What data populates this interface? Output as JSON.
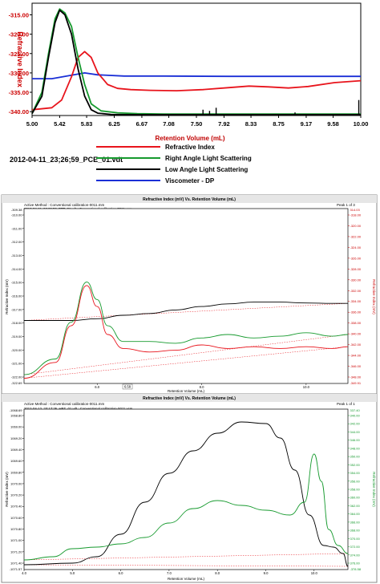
{
  "chart_data": [
    {
      "type": "line",
      "xlabel": "Retention Volume (mL)",
      "ylabel": "Refractive Index",
      "x_ticks": [
        "5.00",
        "5.42",
        "5.83",
        "6.25",
        "6.67",
        "7.08",
        "7.50",
        "7.92",
        "8.33",
        "8.75",
        "9.17",
        "9.58",
        "10.00"
      ],
      "y_ticks": [
        "-315.00",
        "-320.00",
        "-325.00",
        "-330.00",
        "-335.00",
        "-340.00"
      ],
      "xlim": [
        5.0,
        10.0
      ],
      "ylim": [
        -341,
        -312
      ],
      "sample_label": "2012-04-11_23;26;59_PCE_01.vdt",
      "legend": [
        {
          "name": "Refractive Index",
          "color": "#e8141c"
        },
        {
          "name": "Right Angle Light Scattering",
          "color": "#169a2e"
        },
        {
          "name": "Low Angle Light Scattering",
          "color": "#000000"
        },
        {
          "name": "Viscometer - DP",
          "color": "#1a2fd6"
        }
      ],
      "series": [
        {
          "name": "Refractive Index",
          "color": "#e8141c",
          "x": [
            5.0,
            5.3,
            5.45,
            5.6,
            5.7,
            5.8,
            5.9,
            6.0,
            6.15,
            6.3,
            6.5,
            6.8,
            7.2,
            7.6,
            8.0,
            8.3,
            8.6,
            8.9,
            9.2,
            9.6,
            10.0
          ],
          "y": [
            -339.5,
            -339,
            -337,
            -331,
            -326,
            -324.5,
            -326,
            -330,
            -333,
            -334,
            -334.3,
            -334.5,
            -334.6,
            -334.3,
            -333.8,
            -333.4,
            -333.6,
            -333.9,
            -333.5,
            -332.5,
            -332
          ]
        },
        {
          "name": "Right Angle Light Scattering",
          "color": "#169a2e",
          "x": [
            5.0,
            5.15,
            5.25,
            5.35,
            5.42,
            5.5,
            5.6,
            5.7,
            5.8,
            5.9,
            6.05,
            6.3,
            6.6,
            7.0,
            8.0,
            10.0
          ],
          "y": [
            -340.5,
            -335,
            -325,
            -316,
            -313.5,
            -314.5,
            -318,
            -326,
            -333,
            -338,
            -339.8,
            -340.3,
            -340.5,
            -340.6,
            -340.6,
            -340.6
          ]
        },
        {
          "name": "Low Angle Light Scattering",
          "color": "#000000",
          "x": [
            5.0,
            5.15,
            5.25,
            5.35,
            5.42,
            5.5,
            5.6,
            5.7,
            5.8,
            5.9,
            6.0,
            6.2,
            6.6,
            7.0,
            8.0,
            10.0
          ],
          "y": [
            -340.5,
            -336,
            -326,
            -317,
            -313.8,
            -315,
            -320,
            -329,
            -336,
            -339.5,
            -340.4,
            -340.7,
            -340.8,
            -340.8,
            -340.8,
            -340.8
          ]
        },
        {
          "name": "Viscometer - DP",
          "color": "#1a2fd6",
          "x": [
            5.0,
            5.3,
            5.6,
            5.8,
            6.0,
            6.4,
            7.0,
            8.0,
            9.0,
            10.0
          ],
          "y": [
            -331.5,
            -331.5,
            -330.6,
            -330,
            -330.5,
            -330.8,
            -330.8,
            -330.9,
            -330.9,
            -330.9
          ]
        }
      ]
    },
    {
      "type": "line",
      "title": "Refractive Index (mV) Vs. Retention Volume (mL)",
      "active_method": "Active Method : Conventional calibration-0011.mm",
      "page": "Peak 1 of 3",
      "files": [
        {
          "text": "2012-04-11_22;26;52_PTF_01.vdt : Conventional calibration-0011.vcm",
          "color": "#000000"
        },
        {
          "text": "2012-04-11_21;24;43_DPE_01.vdt : Conventional calibration-0011.vcm",
          "color": "#169a2e"
        },
        {
          "text": "2012-04-11_23;26;59_PCE_01.vdt : Conventional calibration-0011.vcm",
          "color": "#e8141c"
        }
      ],
      "xlabel": "Retention Volume (mL)",
      "ylabel_left": "Refractive Index (mV)",
      "ylabel_right": "Refractive Index (mV)",
      "xlim": [
        4.6,
        10.8
      ],
      "x_ticks": [
        "6.0",
        "8.0",
        "10.0"
      ],
      "x_marker": "6.58",
      "y_top_left": "-309.38",
      "y_bottom_left": "-322.69",
      "y_ticks_left": [
        "-310.00",
        "-311.00",
        "-312.00",
        "-313.00",
        "-314.00",
        "-315.00",
        "-316.00",
        "-317.00",
        "-318.00",
        "-319.00",
        "-320.00",
        "-321.00",
        "-322.00"
      ],
      "y_ticks_right": [
        "-318.00",
        "-320.00",
        "-322.00",
        "-324.00",
        "-326.00",
        "-328.00",
        "-330.00",
        "-332.00",
        "-334.00",
        "-336.00",
        "-338.00",
        "-340.00",
        "-342.00",
        "-344.00",
        "-346.00",
        "-348.00"
      ],
      "y_top_right": "314.03",
      "y_bottom_right": "-349.91",
      "series": [
        {
          "name": "PTF",
          "color": "#000000",
          "x": [
            4.6,
            5.5,
            6.0,
            6.5,
            7.0,
            7.5,
            8.0,
            8.5,
            9.0,
            9.5,
            10.0,
            10.5,
            10.8
          ],
          "y": [
            0.36,
            0.36,
            0.37,
            0.39,
            0.4,
            0.42,
            0.44,
            0.455,
            0.465,
            0.465,
            0.46,
            0.458,
            0.458
          ]
        },
        {
          "name": "DPE",
          "color": "#169a2e",
          "x": [
            4.6,
            5.2,
            5.5,
            5.8,
            6.0,
            6.2,
            6.5,
            7.0,
            7.5,
            8.0,
            8.5,
            9.0,
            9.5,
            10.0,
            10.5,
            10.8
          ],
          "y": [
            0.05,
            0.14,
            0.35,
            0.58,
            0.48,
            0.33,
            0.24,
            0.24,
            0.23,
            0.26,
            0.28,
            0.26,
            0.27,
            0.29,
            0.27,
            0.28
          ]
        },
        {
          "name": "PCE",
          "color": "#e8141c",
          "x": [
            4.6,
            5.2,
            5.5,
            5.8,
            6.0,
            6.2,
            6.5,
            7.0,
            7.5,
            8.0,
            8.5,
            9.0,
            9.5,
            10.0,
            10.5,
            10.8
          ],
          "y": [
            0.03,
            0.12,
            0.33,
            0.56,
            0.44,
            0.28,
            0.2,
            0.18,
            0.19,
            0.22,
            0.2,
            0.21,
            0.2,
            0.21,
            0.2,
            0.21
          ]
        }
      ]
    },
    {
      "type": "line",
      "title": "Refractive Index (mV) Vs. Retention Volume (mL)",
      "active_method": "Active Method : Conventional calibration-0011.mm",
      "page": "Peak 1 of 1",
      "files": [
        {
          "text": "2012-04-12_23;17;25_HEF_01.vdt : Conventional calibration-0011.vcm",
          "color": "#000000"
        },
        {
          "text": "2012-04-12_23;28;20_HCF_01.vdt : Conventional calibration-0011.vcm",
          "color": "#169a2e"
        }
      ],
      "xlabel": "Retention Volume (mL)",
      "ylabel_left": "Refractive Index (mV)",
      "ylabel_right": "Refractive Index (mV)",
      "xlim": [
        4.0,
        10.7
      ],
      "x_ticks": [
        "4.0",
        "5.0",
        "6.0",
        "7.0",
        "8.0",
        "9.0",
        "10.0"
      ],
      "y_top_left": "-1068.69",
      "y_bottom_left": "-1071.57",
      "y_ticks_left": [
        "1068.80",
        "1069.00",
        "1069.20",
        "1069.40",
        "1069.60",
        "1069.80",
        "1070.00",
        "1070.20",
        "1070.40",
        "1070.60",
        "1070.80",
        "1071.00",
        "1071.20",
        "1071.40"
      ],
      "y_top_right": "337.40",
      "y_bottom_right": "-378.58",
      "y_ticks_right": [
        "340.00",
        "342.00",
        "344.00",
        "346.00",
        "348.00",
        "350.00",
        "352.00",
        "354.00",
        "356.00",
        "358.00",
        "360.00",
        "362.00",
        "364.00",
        "366.00",
        "368.00",
        "370.00",
        "372.00",
        "374.00",
        "376.00"
      ],
      "series": [
        {
          "name": "HEF",
          "color": "#000000",
          "x": [
            4.0,
            5.0,
            5.5,
            6.0,
            6.5,
            7.0,
            7.5,
            8.0,
            8.5,
            9.0,
            9.3,
            9.6,
            9.9,
            10.2,
            10.4,
            10.6,
            10.7
          ],
          "y": [
            0.03,
            0.04,
            0.08,
            0.22,
            0.42,
            0.6,
            0.74,
            0.85,
            0.92,
            0.91,
            0.82,
            0.62,
            0.34,
            0.15,
            0.14,
            0.1,
            0.02
          ]
        },
        {
          "name": "HCF",
          "color": "#169a2e",
          "x": [
            4.0,
            4.6,
            5.0,
            5.5,
            6.0,
            6.5,
            7.0,
            7.5,
            8.0,
            8.5,
            9.0,
            9.5,
            9.8,
            10.0,
            10.15,
            10.3,
            10.5,
            10.7
          ],
          "y": [
            0.06,
            0.08,
            0.13,
            0.14,
            0.16,
            0.2,
            0.29,
            0.38,
            0.43,
            0.4,
            0.37,
            0.34,
            0.42,
            0.72,
            0.55,
            0.25,
            0.15,
            0.1
          ]
        }
      ]
    }
  ]
}
